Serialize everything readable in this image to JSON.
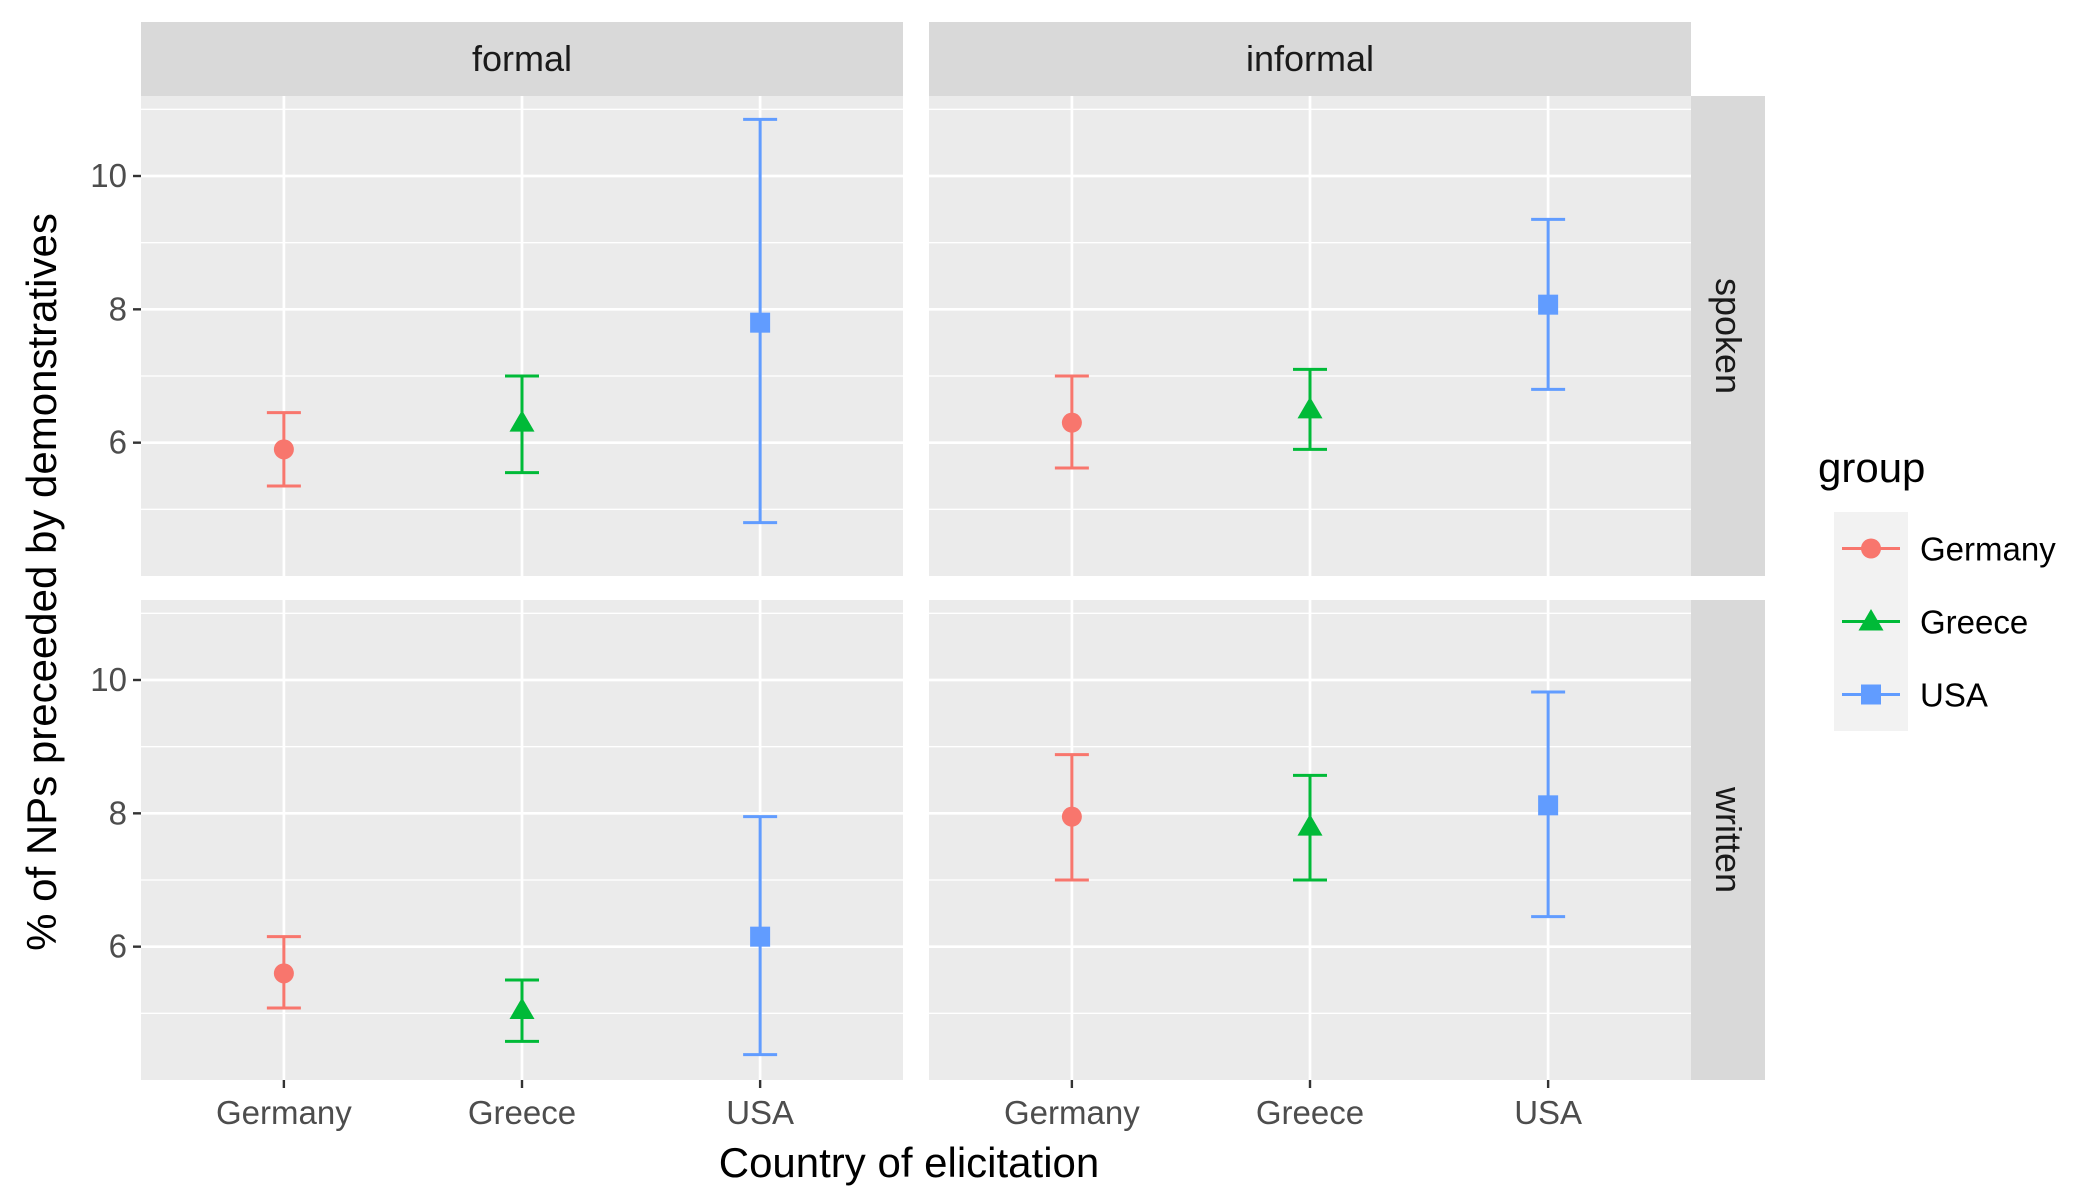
{
  "chart_data": {
    "type": "scatter",
    "subtype": "pointrange-errorbar-facet-grid",
    "xlabel": "Country of elicitation",
    "ylabel": "% of NPs preceeded by demonstratives",
    "categories": [
      "Germany",
      "Greece",
      "USA"
    ],
    "ylim": [
      4.0,
      11.2
    ],
    "yticks": [
      6,
      8,
      10
    ],
    "grid": true,
    "legend": {
      "title": "group",
      "position": "right",
      "entries": [
        {
          "name": "Germany",
          "color": "#F8766D",
          "shape": "circle"
        },
        {
          "name": "Greece",
          "color": "#00BA38",
          "shape": "triangle"
        },
        {
          "name": "USA",
          "color": "#619CFF",
          "shape": "square"
        }
      ]
    },
    "facet_columns": [
      "formal",
      "informal"
    ],
    "facet_rows": [
      "spoken",
      "written"
    ],
    "panels": [
      {
        "col": "formal",
        "row": "spoken",
        "points": [
          {
            "x": "Germany",
            "y": 5.9,
            "ymin": 5.35,
            "ymax": 6.45
          },
          {
            "x": "Greece",
            "y": 6.3,
            "ymin": 5.55,
            "ymax": 7.0
          },
          {
            "x": "USA",
            "y": 7.8,
            "ymin": 4.8,
            "ymax": 10.85
          }
        ]
      },
      {
        "col": "informal",
        "row": "spoken",
        "points": [
          {
            "x": "Germany",
            "y": 6.3,
            "ymin": 5.62,
            "ymax": 7.0
          },
          {
            "x": "Greece",
            "y": 6.5,
            "ymin": 5.9,
            "ymax": 7.1
          },
          {
            "x": "USA",
            "y": 8.07,
            "ymin": 6.8,
            "ymax": 9.35
          }
        ]
      },
      {
        "col": "formal",
        "row": "written",
        "points": [
          {
            "x": "Germany",
            "y": 5.6,
            "ymin": 5.08,
            "ymax": 6.15
          },
          {
            "x": "Greece",
            "y": 5.05,
            "ymin": 4.58,
            "ymax": 5.5
          },
          {
            "x": "USA",
            "y": 6.15,
            "ymin": 4.38,
            "ymax": 7.95
          }
        ]
      },
      {
        "col": "informal",
        "row": "written",
        "points": [
          {
            "x": "Germany",
            "y": 7.95,
            "ymin": 7.0,
            "ymax": 8.88
          },
          {
            "x": "Greece",
            "y": 7.8,
            "ymin": 7.0,
            "ymax": 8.57
          },
          {
            "x": "USA",
            "y": 8.12,
            "ymin": 6.45,
            "ymax": 9.82
          }
        ]
      }
    ]
  }
}
